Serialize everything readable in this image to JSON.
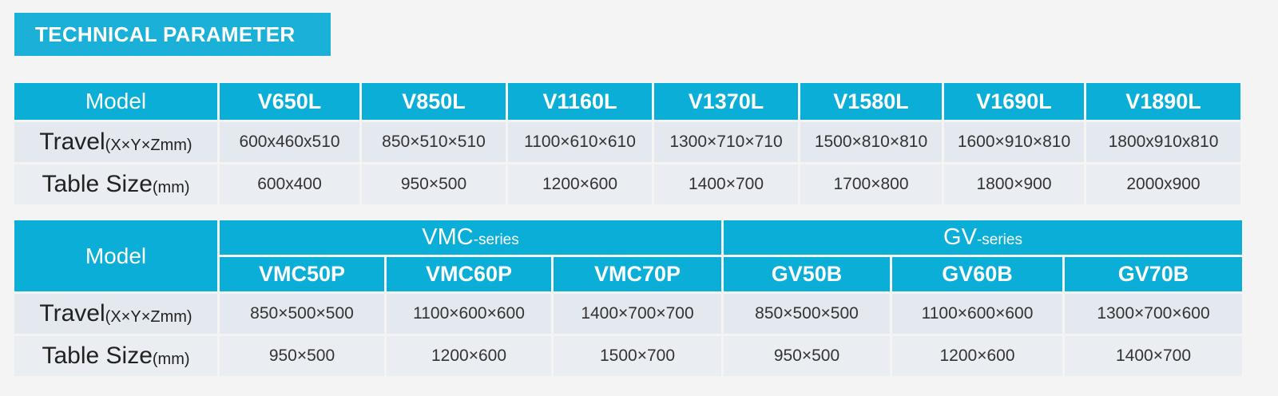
{
  "title": "TECHNICAL PARAMETER",
  "labels": {
    "model": "Model",
    "travel": "Travel",
    "travel_unit": "(X×Y×Zmm)",
    "table_size": "Table Size",
    "table_size_unit": "(mm)"
  },
  "table1": {
    "models": [
      "V650L",
      "V850L",
      "V1160L",
      "V1370L",
      "V1580L",
      "V1690L",
      "V1890L"
    ],
    "travel": [
      "600x460x510",
      "850×510×510",
      "1100×610×610",
      "1300×710×710",
      "1500×810×810",
      "1600×910×810",
      "1800x910x810"
    ],
    "table_size": [
      "600x400",
      "950×500",
      "1200×600",
      "1400×700",
      "1700×800",
      "1800×900",
      "2000x900"
    ]
  },
  "table2": {
    "series": [
      {
        "name": "VMC",
        "suffix": "-series"
      },
      {
        "name": "GV",
        "suffix": "-series"
      }
    ],
    "models": [
      "VMC50P",
      "VMC60P",
      "VMC70P",
      "GV50B",
      "GV60B",
      "GV70B"
    ],
    "travel": [
      "850×500×500",
      "1100×600×600",
      "1400×700×700",
      "850×500×500",
      "1100×600×600",
      "1300×700×600"
    ],
    "table_size": [
      "950×500",
      "1200×600",
      "1500×700",
      "950×500",
      "1200×600",
      "1400×700"
    ]
  },
  "colors": {
    "header_bg": "#0aaed6",
    "title_bg": "#1ab0d8",
    "row_bg": "#e4e8ef",
    "page_bg": "#f4f4f4"
  }
}
